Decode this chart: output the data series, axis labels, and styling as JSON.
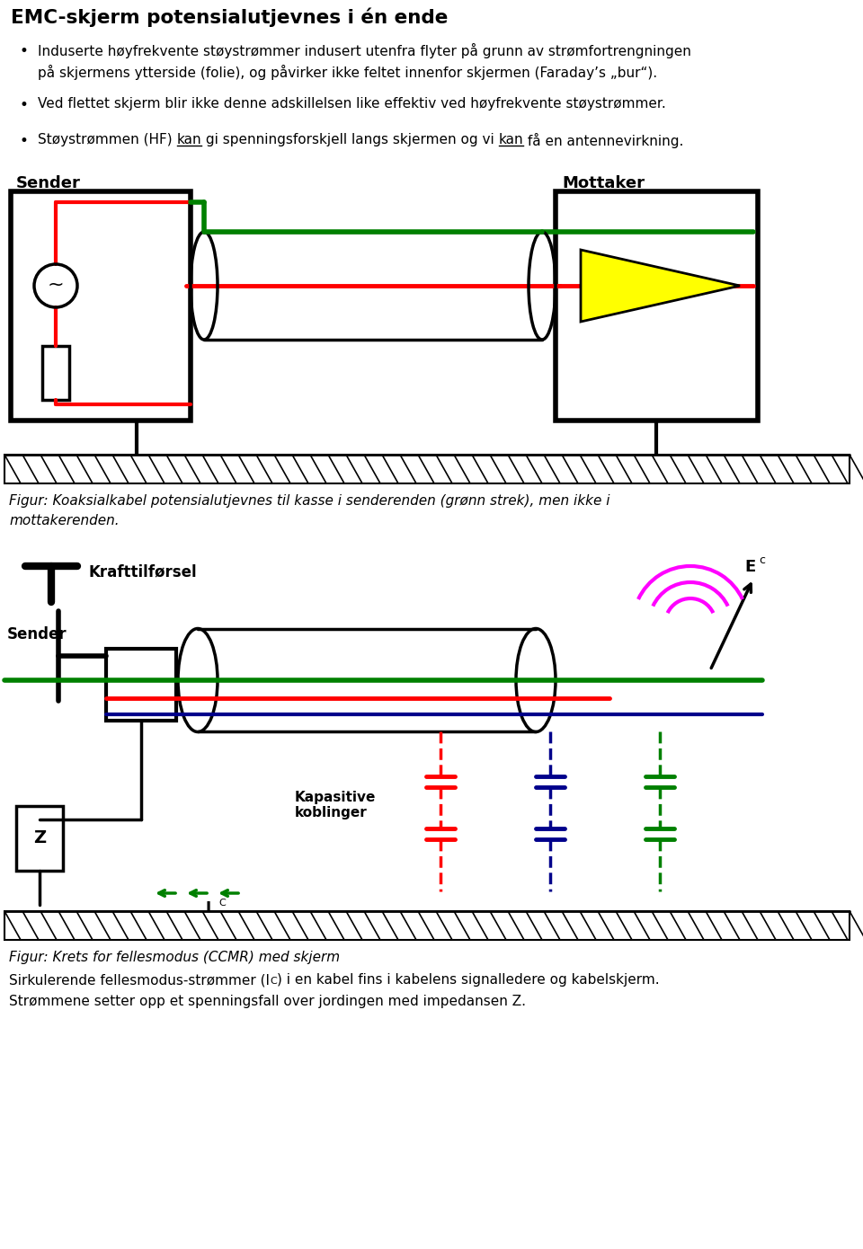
{
  "title": "EMC-skjerm potensialutjevnes i én ende",
  "bullet1_line1": "Induserte høyfrekvente støystrømmer indusert utenfra flyter på grunn av strømfortrengningen",
  "bullet1_line2": "på skjermens ytterside (folie), og påvirker ikke feltet innenfor skjermen (Faraday’s „bur“).",
  "bullet2": "Ved flettet skjerm blir ikke denne adskillelsen like effektiv ved høyfrekvente støystrømmer.",
  "bullet3_pre": "Støystrømmen (HF) ",
  "bullet3_kan1": "kan",
  "bullet3_mid": " gi spenningsforskjell langs skjermen og vi ",
  "bullet3_kan2": "kan",
  "bullet3_post": " få en antennevirkning.",
  "fig1_cap1": "Figur: Koaksialkabel potensialutjevnes til kasse i senderenden (grønn strek), men ikke i",
  "fig1_cap2": "mottakerenden.",
  "sender1": "Sender",
  "mottaker1": "Mottaker",
  "fig2_sender": "Sender",
  "fig2_kraft": "Krafttilførsel",
  "fig2_Ec": "E",
  "fig2_Ec_sub": "c",
  "fig2_kap": "Kapasitive\nkoblinger",
  "fig2_Ic": "I",
  "fig2_Ic_sub": "C",
  "fig2_Z": "Z",
  "fig2_caption": "Figur: Krets for fellesmodus (CCMR) med skjerm",
  "fig2_text1a": "Sirkulerende fellesmodus-strømmer (I",
  "fig2_text1b": "C",
  "fig2_text1c": ") i en kabel fins i kabelens signalledere og kabelskjerm.",
  "fig2_text2": "Strømmene setter opp et spenningsfall over jordingen med impedansen Z.",
  "bg": "#ffffff",
  "fg": "#000000"
}
